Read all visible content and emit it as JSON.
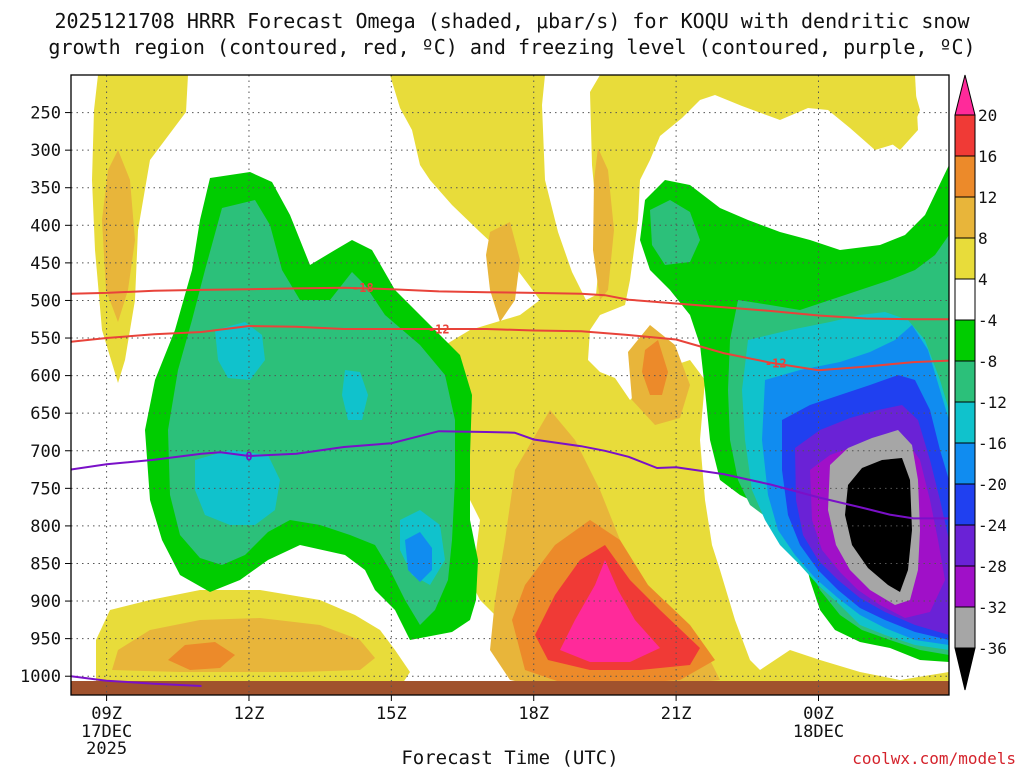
{
  "chart_data": {
    "type": "heatmap",
    "title_line1": "2025121708 HRRR Forecast Omega (shaded, μbar/s) for KOQU with dendritic snow",
    "title_line2": "growth region (contoured, red, ºC) and freezing level (contoured, purple, ºC)",
    "xlabel": "Forecast Time (UTC)",
    "ylabel": "",
    "credit": "coolwx.com/models",
    "x_range_hours": [
      8.25,
      26.75
    ],
    "y_range_hPa": [
      200,
      1025
    ],
    "y_ticks": [
      {
        "label": "250",
        "p": 250
      },
      {
        "label": "300",
        "p": 300
      },
      {
        "label": "350",
        "p": 350
      },
      {
        "label": "400",
        "p": 400
      },
      {
        "label": "450",
        "p": 450
      },
      {
        "label": "500",
        "p": 500
      },
      {
        "label": "550",
        "p": 550
      },
      {
        "label": "600",
        "p": 600
      },
      {
        "label": "650",
        "p": 650
      },
      {
        "label": "700",
        "p": 700
      },
      {
        "label": "750",
        "p": 750
      },
      {
        "label": "800",
        "p": 800
      },
      {
        "label": "850",
        "p": 850
      },
      {
        "label": "900",
        "p": 900
      },
      {
        "label": "950",
        "p": 950
      },
      {
        "label": "1000",
        "p": 1000
      }
    ],
    "x_ticks": [
      {
        "label": "09Z",
        "sub": [
          "17DEC",
          "2025"
        ],
        "h": 9
      },
      {
        "label": "12Z",
        "sub": [],
        "h": 12
      },
      {
        "label": "15Z",
        "sub": [],
        "h": 15
      },
      {
        "label": "18Z",
        "sub": [],
        "h": 18
      },
      {
        "label": "21Z",
        "sub": [],
        "h": 21
      },
      {
        "label": "00Z",
        "sub": [
          "18DEC"
        ],
        "h": 24
      }
    ],
    "colorbar": {
      "levels": [
        "20",
        "16",
        "12",
        "8",
        "4",
        "-4",
        "-8",
        "-12",
        "-16",
        "-20",
        "-24",
        "-28",
        "-32",
        "-36"
      ],
      "colors": [
        "#ff2a9a",
        "#f03a36",
        "#ec8a2a",
        "#e8b53a",
        "#e8dc3a",
        "#ffffff",
        "#00cc00",
        "#2cc07a",
        "#10c2cc",
        "#108cf0",
        "#2040f0",
        "#6a22d6",
        "#a010c8",
        "#a6a6a6",
        "#000000"
      ]
    },
    "contours": [
      {
        "name": "-18",
        "kind": "dendritic",
        "label": "-18",
        "color": "#e8433a",
        "points": [
          [
            8.25,
            491
          ],
          [
            9,
            490
          ],
          [
            10,
            487
          ],
          [
            11,
            486
          ],
          [
            12,
            485
          ],
          [
            13,
            484
          ],
          [
            14,
            483
          ],
          [
            15,
            485
          ],
          [
            16,
            488
          ],
          [
            17,
            489
          ],
          [
            18,
            490
          ],
          [
            19,
            491
          ],
          [
            19.5,
            493
          ],
          [
            20,
            499
          ],
          [
            21,
            504
          ],
          [
            22,
            509
          ],
          [
            23,
            514
          ],
          [
            24,
            520
          ],
          [
            25,
            524
          ],
          [
            26,
            525
          ],
          [
            26.75,
            525
          ]
        ]
      },
      {
        "name": "-12",
        "kind": "dendritic",
        "label": "-12",
        "color": "#e8433a",
        "points": [
          [
            8.25,
            555
          ],
          [
            9,
            550
          ],
          [
            10,
            545
          ],
          [
            11,
            542
          ],
          [
            12,
            534
          ],
          [
            13,
            535
          ],
          [
            14,
            538
          ],
          [
            15,
            538
          ],
          [
            16,
            538
          ],
          [
            17,
            538
          ],
          [
            18,
            540
          ],
          [
            19,
            541
          ],
          [
            20,
            546
          ],
          [
            21,
            552
          ],
          [
            22,
            570
          ],
          [
            23,
            583
          ],
          [
            24,
            593
          ],
          [
            25,
            588
          ],
          [
            26,
            582
          ],
          [
            26.75,
            580
          ]
        ]
      },
      {
        "name": "0",
        "kind": "freezing",
        "label": "0",
        "color": "#7a10c8",
        "points": [
          [
            8.25,
            725
          ],
          [
            9,
            718
          ],
          [
            10,
            712
          ],
          [
            11,
            704
          ],
          [
            11.4,
            702
          ],
          [
            12,
            707
          ],
          [
            13,
            704
          ],
          [
            14,
            695
          ],
          [
            15,
            690
          ],
          [
            16,
            674
          ],
          [
            17,
            675
          ],
          [
            17.6,
            676
          ],
          [
            18,
            685
          ],
          [
            19,
            694
          ],
          [
            19.5,
            700
          ],
          [
            20,
            708
          ],
          [
            20.6,
            723
          ],
          [
            21,
            722
          ],
          [
            22,
            731
          ],
          [
            23,
            745
          ],
          [
            24,
            762
          ],
          [
            25,
            777
          ],
          [
            25.5,
            785
          ],
          [
            26,
            790
          ],
          [
            26.75,
            790
          ]
        ]
      },
      {
        "name": "0-sfc",
        "kind": "freezing",
        "label": "",
        "color": "#7a10c8",
        "points": [
          [
            8.25,
            1000
          ],
          [
            9,
            1006
          ],
          [
            10,
            1010
          ],
          [
            11,
            1013
          ]
        ]
      }
    ],
    "surface_color": "#a0522d"
  }
}
